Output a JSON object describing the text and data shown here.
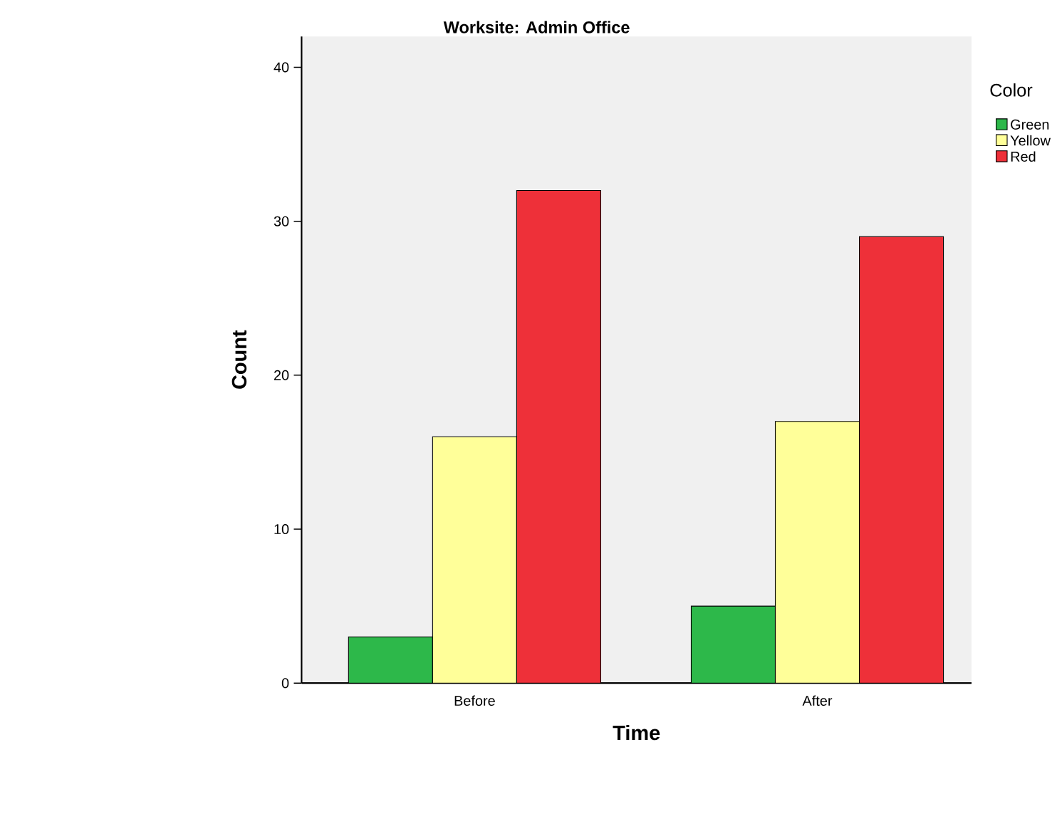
{
  "chart_data": {
    "type": "bar",
    "title": "Worksite: Admin Office",
    "xlabel": "Time",
    "ylabel": "Count",
    "legend_title": "Color",
    "categories": [
      "Before",
      "After"
    ],
    "series": [
      {
        "name": "Green",
        "color": "#2db84a",
        "values": [
          3,
          5
        ]
      },
      {
        "name": "Yellow",
        "color": "#ffff99",
        "values": [
          16,
          17
        ]
      },
      {
        "name": "Red",
        "color": "#ee3039",
        "values": [
          32,
          29
        ]
      }
    ],
    "ylim": [
      0,
      42
    ],
    "yticks": [
      0,
      10,
      20,
      30,
      40
    ],
    "legend": "right"
  }
}
